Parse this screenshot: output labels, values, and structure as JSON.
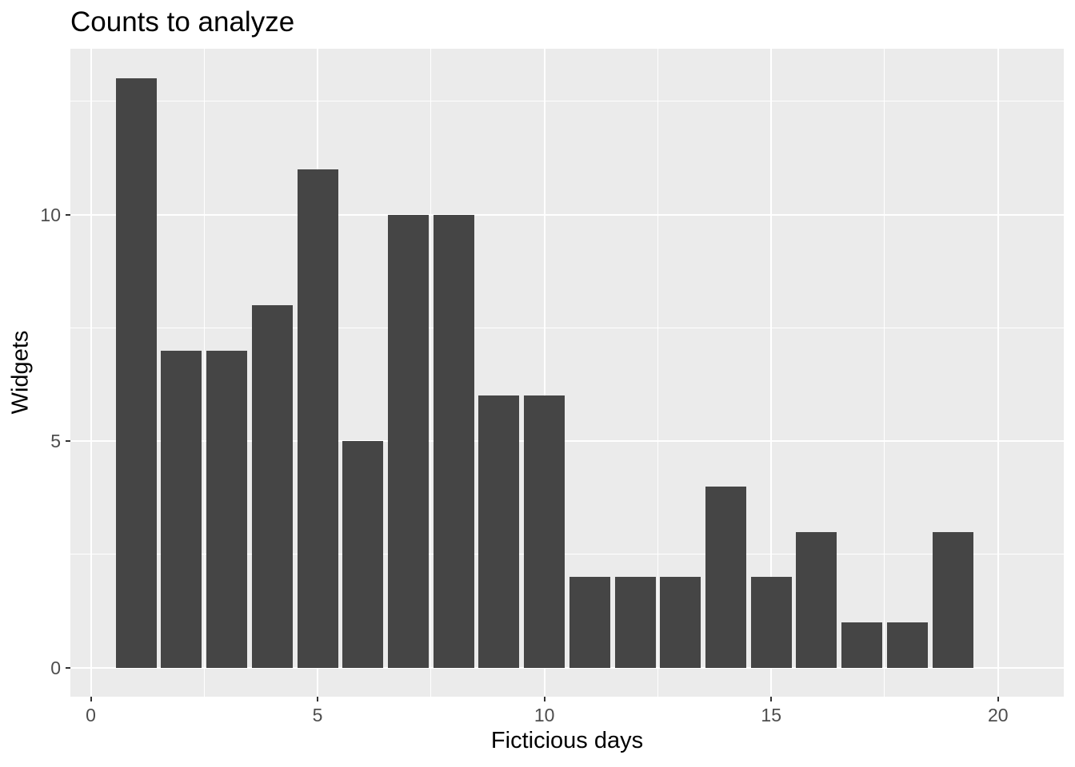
{
  "chart_data": {
    "type": "bar",
    "title": "Counts to analyze",
    "xlabel": "Ficticious days",
    "ylabel": "Widgets",
    "x": [
      1,
      2,
      3,
      4,
      5,
      6,
      7,
      8,
      9,
      10,
      11,
      12,
      13,
      14,
      15,
      16,
      17,
      18,
      19
    ],
    "values": [
      13,
      7,
      7,
      8,
      11,
      5,
      10,
      10,
      6,
      6,
      2,
      2,
      2,
      4,
      2,
      3,
      1,
      1,
      3
    ],
    "bar_width": 0.9,
    "xlim": [
      -0.45,
      21.45
    ],
    "ylim": [
      -0.64,
      13.66
    ],
    "x_ticks": [
      0,
      5,
      10,
      15,
      20
    ],
    "y_ticks": [
      0,
      5,
      10
    ],
    "x_minor_gridlines": [
      2.5,
      7.5,
      12.5,
      17.5
    ],
    "y_minor_gridlines": [
      2.5,
      7.5,
      12.5
    ],
    "grid": "on",
    "legend": "none",
    "colors": {
      "plot_background": "#FFFFFF",
      "panel_background": "#EBEBEB",
      "gridline": "#FFFFFF",
      "bar_fill": "#454545",
      "tick_label": "#4D4D4D",
      "tick_mark": "#333333",
      "title_text": "#000000"
    }
  }
}
